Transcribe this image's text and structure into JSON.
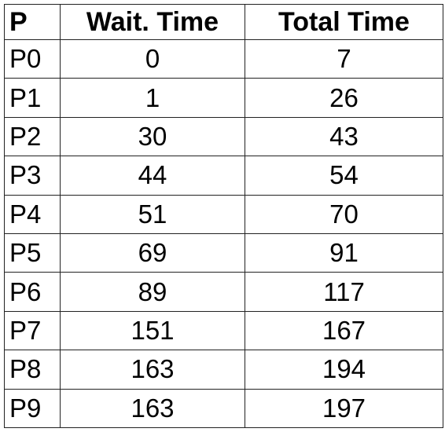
{
  "table": {
    "headers": [
      "P",
      "Wait. Time",
      "Total Time"
    ],
    "rows": [
      [
        "P0",
        "0",
        "7"
      ],
      [
        "P1",
        "1",
        "26"
      ],
      [
        "P2",
        "30",
        "43"
      ],
      [
        "P3",
        "44",
        "54"
      ],
      [
        "P4",
        "51",
        "70"
      ],
      [
        "P5",
        "69",
        "91"
      ],
      [
        "P6",
        "89",
        "117"
      ],
      [
        "P7",
        "151",
        "167"
      ],
      [
        "P8",
        "163",
        "194"
      ],
      [
        "P9",
        "163",
        "197"
      ]
    ]
  },
  "colors": {
    "background": "#ffffff",
    "text": "#000000",
    "border": "#222222"
  }
}
